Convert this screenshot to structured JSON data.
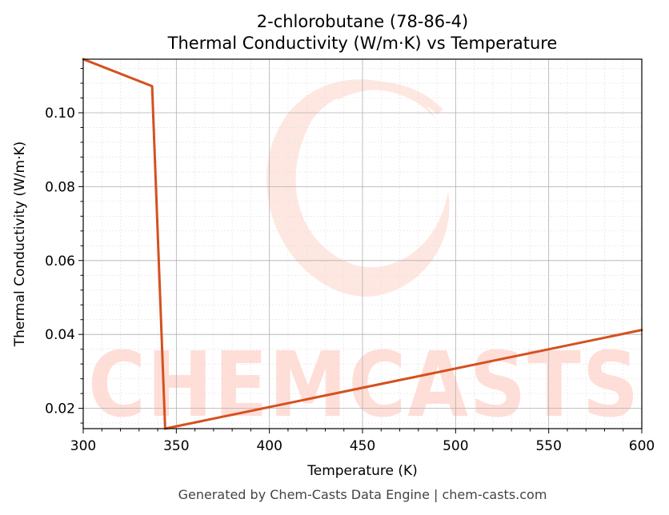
{
  "colors": {
    "line": "#d4511e",
    "watermark": "#ffd9d2",
    "grid_major": "#b0b0b0",
    "grid_minor": "#e0e0e0",
    "footer": "#444444"
  },
  "watermark": {
    "text": "CHEMCASTS",
    "logo_icon": "chem-casts-swirl-logo"
  },
  "footer": {
    "text": "Generated by Chem-Casts Data Engine | chem-casts.com"
  },
  "chart_data": {
    "type": "line",
    "title": "2-chlorobutane (78-86-4)",
    "subtitle": "Thermal Conductivity (W/m·K) vs Temperature",
    "xlabel": "Temperature (K)",
    "ylabel": "Thermal Conductivity (W/m·K)",
    "xlim": [
      300,
      600
    ],
    "ylim": [
      0.0145,
      0.1145
    ],
    "x_ticks": [
      300,
      350,
      400,
      450,
      500,
      550,
      600
    ],
    "x_tick_labels": [
      "300",
      "350",
      "400",
      "450",
      "500",
      "550",
      "600"
    ],
    "y_ticks": [
      0.02,
      0.04,
      0.06,
      0.08,
      0.1
    ],
    "y_tick_labels": [
      "0.02",
      "0.04",
      "0.06",
      "0.08",
      "0.10"
    ],
    "grid": true,
    "minor_grid": true,
    "series": [
      {
        "x": [
          300,
          337,
          344,
          600
        ],
        "y": [
          0.1145,
          0.1072,
          0.0145,
          0.0412
        ]
      }
    ]
  }
}
